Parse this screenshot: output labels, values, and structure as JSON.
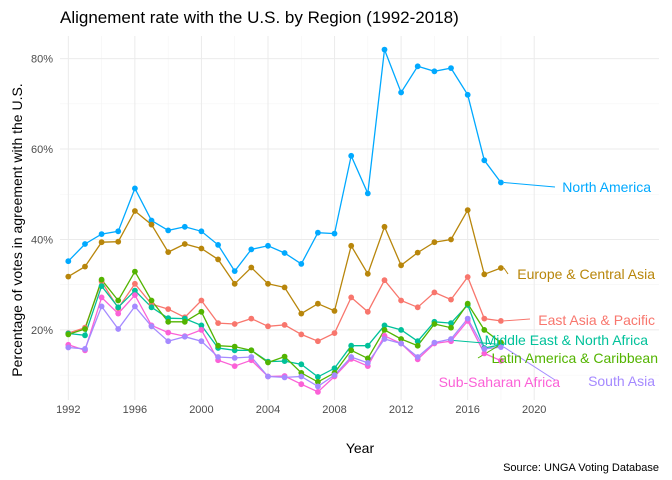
{
  "chart_data": {
    "type": "line",
    "title": "Alignement rate with the U.S. by Region (1992-2018)",
    "xlabel": "Year",
    "ylabel": "Percentage of votes in agreement with the U.S.",
    "caption": "Source: UNGA Voting Database",
    "xlim": [
      1991.5,
      2027.5
    ],
    "ylim": [
      0.045,
      0.85
    ],
    "x_ticks": [
      1992,
      1996,
      2000,
      2004,
      2008,
      2012,
      2016,
      2020
    ],
    "x_tick_labels": [
      "1992",
      "1996",
      "2000",
      "2004",
      "2008",
      "2012",
      "2016",
      "2020"
    ],
    "y_ticks": [
      0.2,
      0.4,
      0.6,
      0.8
    ],
    "y_tick_labels": [
      "20%",
      "40%",
      "60%",
      "80%"
    ],
    "grid": true,
    "legend": "direct labels at right end of each line",
    "x": [
      1992,
      1993,
      1994,
      1995,
      1996,
      1997,
      1998,
      1999,
      2000,
      2001,
      2002,
      2003,
      2004,
      2005,
      2006,
      2007,
      2008,
      2009,
      2010,
      2011,
      2012,
      2013,
      2014,
      2015,
      2016,
      2017,
      2018
    ],
    "series": [
      {
        "name": "North America",
        "color": "#00a9ff",
        "values": [
          0.352,
          0.39,
          0.412,
          0.418,
          0.513,
          0.442,
          0.42,
          0.428,
          0.418,
          0.388,
          0.33,
          0.378,
          0.386,
          0.37,
          0.346,
          0.415,
          0.413,
          0.585,
          0.502,
          0.82,
          0.725,
          0.783,
          0.772,
          0.779,
          0.72,
          0.575,
          0.526
        ]
      },
      {
        "name": "Europe & Central Asia",
        "color": "#b8860b",
        "values": [
          0.318,
          0.34,
          0.394,
          0.395,
          0.463,
          0.433,
          0.372,
          0.39,
          0.38,
          0.356,
          0.302,
          0.338,
          0.302,
          0.294,
          0.236,
          0.258,
          0.242,
          0.386,
          0.324,
          0.428,
          0.343,
          0.371,
          0.394,
          0.4,
          0.465,
          0.323,
          0.337
        ]
      },
      {
        "name": "East Asia & Pacific",
        "color": "#f8766d",
        "values": [
          0.193,
          0.205,
          0.307,
          0.248,
          0.302,
          0.257,
          0.246,
          0.228,
          0.265,
          0.215,
          0.213,
          0.225,
          0.208,
          0.211,
          0.19,
          0.175,
          0.193,
          0.272,
          0.24,
          0.31,
          0.265,
          0.25,
          0.283,
          0.267,
          0.317,
          0.225,
          0.22
        ]
      },
      {
        "name": "Middle East & North Africa",
        "color": "#00c19a",
        "values": [
          0.192,
          0.188,
          0.297,
          0.25,
          0.287,
          0.25,
          0.226,
          0.225,
          0.21,
          0.16,
          0.155,
          0.155,
          0.13,
          0.131,
          0.124,
          0.096,
          0.115,
          0.165,
          0.165,
          0.21,
          0.2,
          0.175,
          0.218,
          0.215,
          0.255,
          0.16,
          0.167
        ]
      },
      {
        "name": "Latin America & Caribbean",
        "color": "#53b400",
        "values": [
          0.19,
          0.202,
          0.311,
          0.265,
          0.329,
          0.265,
          0.218,
          0.218,
          0.24,
          0.165,
          0.163,
          0.155,
          0.128,
          0.141,
          0.105,
          0.085,
          0.105,
          0.155,
          0.137,
          0.2,
          0.18,
          0.165,
          0.213,
          0.205,
          0.258,
          0.2,
          0.172
        ]
      },
      {
        "name": "Sub-Saharan Africa",
        "color": "#fb61d7",
        "values": [
          0.167,
          0.155,
          0.272,
          0.236,
          0.277,
          0.21,
          0.194,
          0.186,
          0.2,
          0.133,
          0.12,
          0.133,
          0.097,
          0.098,
          0.08,
          0.063,
          0.097,
          0.136,
          0.12,
          0.187,
          0.17,
          0.135,
          0.17,
          0.175,
          0.22,
          0.148,
          0.132
        ]
      },
      {
        "name": "South Asia",
        "color": "#a58aff",
        "values": [
          0.161,
          0.158,
          0.252,
          0.202,
          0.252,
          0.208,
          0.175,
          0.185,
          0.175,
          0.14,
          0.138,
          0.14,
          0.097,
          0.095,
          0.097,
          0.075,
          0.1,
          0.14,
          0.127,
          0.18,
          0.17,
          0.14,
          0.172,
          0.18,
          0.225,
          0.158,
          0.162
        ]
      }
    ]
  }
}
